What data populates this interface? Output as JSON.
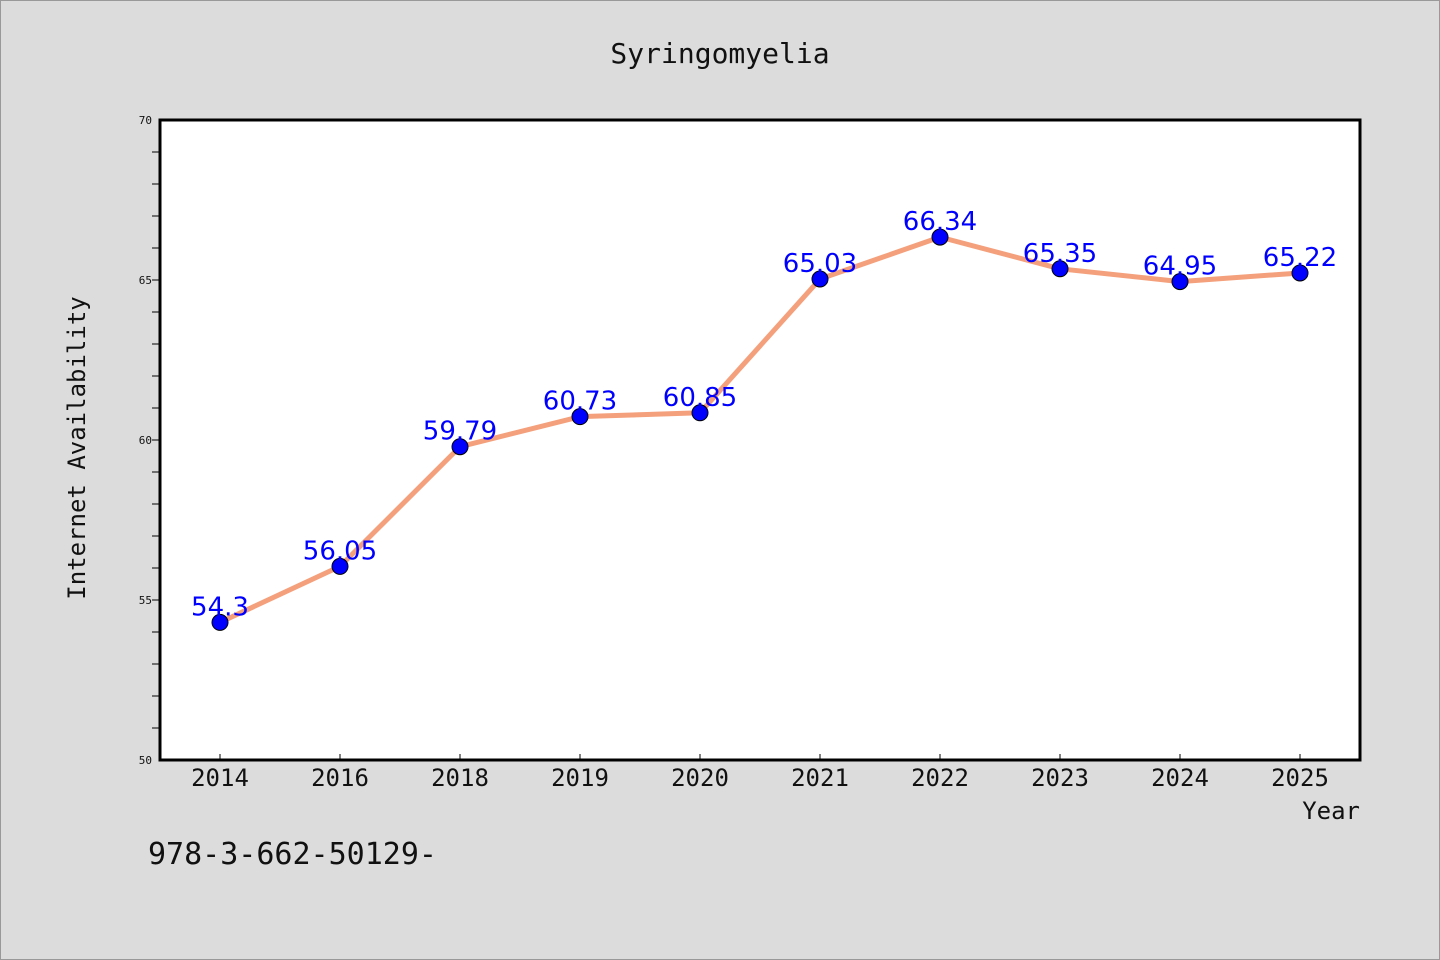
{
  "chart_data": {
    "type": "line",
    "title": "Syringomyelia",
    "xlabel": "Year",
    "ylabel": "Internet Availability",
    "categories": [
      "2014",
      "2016",
      "2018",
      "2019",
      "2020",
      "2021",
      "2022",
      "2023",
      "2024",
      "2025"
    ],
    "series": [
      {
        "values": [
          54.3,
          56.05,
          59.79,
          60.73,
          60.85,
          65.03,
          66.34,
          65.35,
          64.95,
          65.22
        ],
        "labels": [
          "54.3",
          "56.05",
          "59.79",
          "60.73",
          "60.85",
          "65.03",
          "66.34",
          "65.35",
          "64.95",
          "65.22"
        ],
        "line_color": "#f4a07c",
        "marker_color": "#0000ff"
      }
    ],
    "ylim": [
      50,
      70
    ],
    "yticks": [
      50,
      55,
      60,
      65,
      70
    ],
    "grid": false
  },
  "footer_text": "978-3-662-50129-"
}
